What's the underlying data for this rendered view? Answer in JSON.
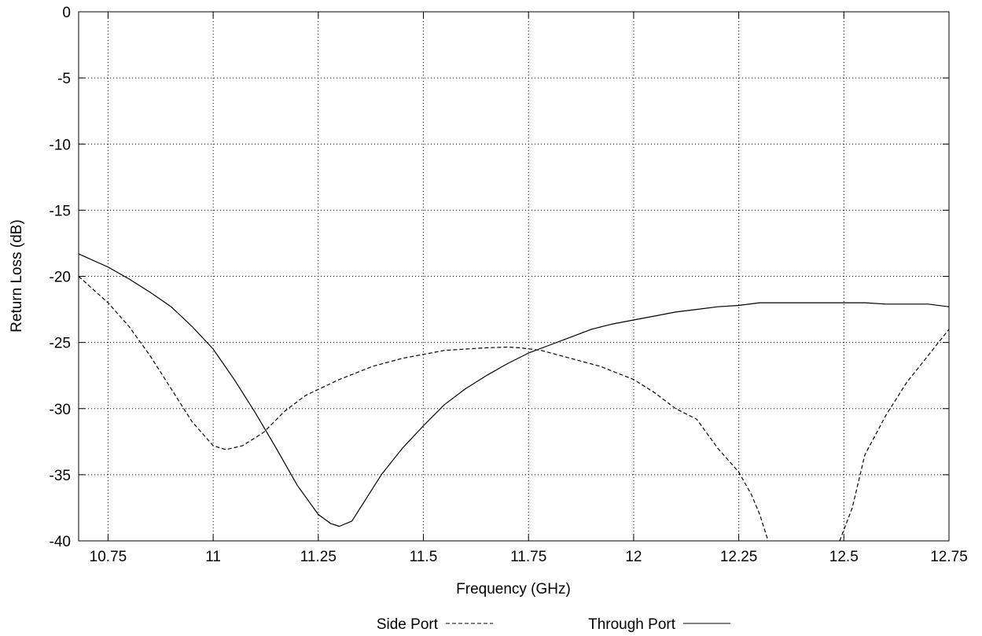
{
  "chart_data": {
    "type": "line",
    "xlabel": "Frequency (GHz)",
    "ylabel": "Return Loss (dB)",
    "xlim": [
      10.68,
      12.75
    ],
    "ylim": [
      -40,
      0
    ],
    "x_ticks": [
      "10.75",
      "11",
      "11.25",
      "11.5",
      "11.75",
      "12",
      "12.25",
      "12.5",
      "12.75"
    ],
    "y_ticks": [
      "0",
      "-5",
      "-10",
      "-15",
      "-20",
      "-25",
      "-30",
      "-35",
      "-40"
    ],
    "grid": true,
    "legend_position": "bottom-center",
    "series": [
      {
        "name": "Side Port",
        "style": "dashed",
        "x": [
          10.68,
          10.75,
          10.8,
          10.85,
          10.9,
          10.95,
          11.0,
          11.03,
          11.07,
          11.12,
          11.17,
          11.22,
          11.3,
          11.38,
          11.45,
          11.5,
          11.55,
          11.6,
          11.65,
          11.7,
          11.73,
          11.78,
          11.85,
          11.92,
          12.0,
          12.05,
          12.1,
          12.15,
          12.2,
          12.25,
          12.28,
          12.3,
          12.32
        ],
        "values": [
          -20.0,
          -22.0,
          -23.8,
          -26.0,
          -28.5,
          -31.0,
          -32.8,
          -33.1,
          -32.8,
          -31.8,
          -30.2,
          -29.0,
          -27.8,
          -26.8,
          -26.2,
          -25.9,
          -25.6,
          -25.5,
          -25.4,
          -25.35,
          -25.4,
          -25.6,
          -26.2,
          -26.8,
          -27.8,
          -28.8,
          -30.0,
          -30.8,
          -33.0,
          -34.8,
          -36.5,
          -38.0,
          -40.0
        ]
      },
      {
        "name": "Side Port",
        "style": "dashed",
        "x": [
          12.49,
          12.52,
          12.55,
          12.6,
          12.65,
          12.7,
          12.75
        ],
        "values": [
          -40.0,
          -37.5,
          -33.5,
          -30.5,
          -28.0,
          -26.0,
          -24.0
        ]
      },
      {
        "name": "Through Port",
        "style": "solid",
        "x": [
          10.68,
          10.75,
          10.8,
          10.85,
          10.9,
          10.95,
          11.0,
          11.05,
          11.1,
          11.15,
          11.2,
          11.25,
          11.28,
          11.3,
          11.33,
          11.36,
          11.4,
          11.45,
          11.5,
          11.55,
          11.6,
          11.65,
          11.7,
          11.75,
          11.8,
          11.85,
          11.9,
          11.95,
          12.0,
          12.05,
          12.1,
          12.15,
          12.2,
          12.25,
          12.3,
          12.35,
          12.4,
          12.45,
          12.5,
          12.55,
          12.6,
          12.65,
          12.7,
          12.75
        ],
        "values": [
          -18.3,
          -19.3,
          -20.2,
          -21.2,
          -22.3,
          -23.8,
          -25.5,
          -27.8,
          -30.3,
          -33.0,
          -35.8,
          -38.0,
          -38.7,
          -38.9,
          -38.5,
          -37.0,
          -35.0,
          -33.0,
          -31.3,
          -29.7,
          -28.5,
          -27.5,
          -26.6,
          -25.8,
          -25.2,
          -24.6,
          -24.0,
          -23.6,
          -23.3,
          -23.0,
          -22.7,
          -22.5,
          -22.3,
          -22.2,
          -22.0,
          -22.0,
          -22.0,
          -22.0,
          -22.0,
          -22.0,
          -22.1,
          -22.1,
          -22.1,
          -22.3
        ]
      }
    ],
    "legend": [
      {
        "label": "Side Port",
        "style": "dashed"
      },
      {
        "label": "Through Port",
        "style": "solid"
      }
    ],
    "colors": {
      "line": "#000000",
      "grid": "#000000",
      "background": "#ffffff"
    }
  }
}
